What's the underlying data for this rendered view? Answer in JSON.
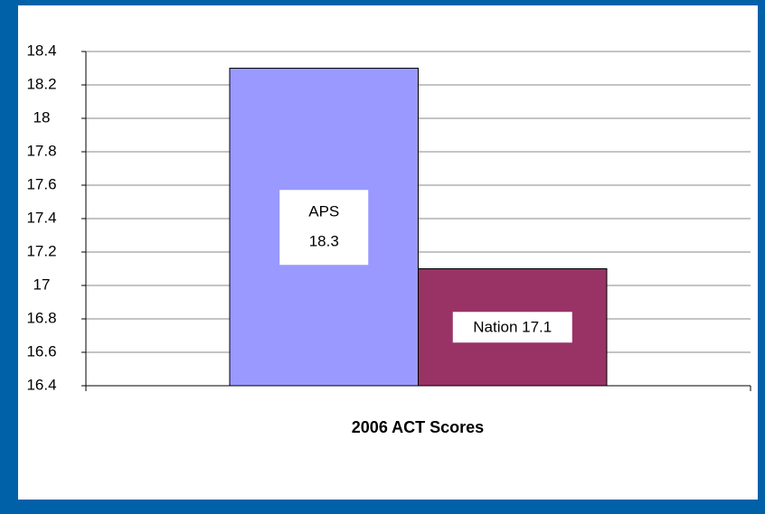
{
  "chart_data": {
    "type": "bar",
    "x_label": "2006 ACT Scores",
    "series": [
      {
        "name": "APS",
        "color": "#9999ff",
        "values": [
          18.3
        ]
      },
      {
        "name": "Nation",
        "color": "#993366",
        "values": [
          17.1
        ]
      }
    ],
    "ylim": [
      16.4,
      18.4
    ],
    "yticks": [
      16.4,
      16.6,
      16.8,
      17,
      17.2,
      17.4,
      17.6,
      17.8,
      18,
      18.2,
      18.4
    ],
    "grid": true
  }
}
